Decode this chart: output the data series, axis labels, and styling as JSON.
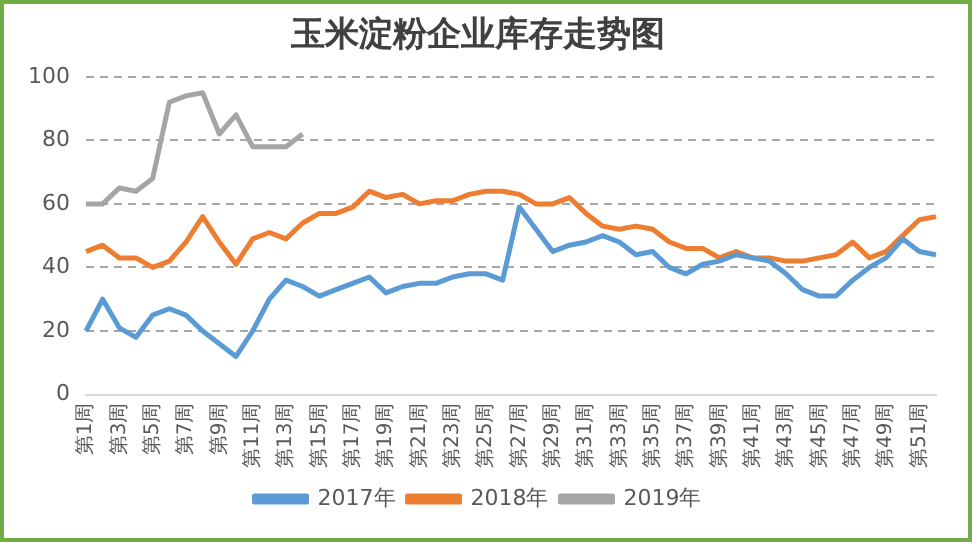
{
  "chart_data": {
    "type": "line",
    "title": "玉米淀粉企业库存走势图",
    "categories": [
      "第1周",
      null,
      "第3周",
      null,
      "第5周",
      null,
      "第7周",
      null,
      "第9周",
      null,
      "第11周",
      null,
      "第13周",
      null,
      "第15周",
      null,
      "第17周",
      null,
      "第19周",
      null,
      "第21周",
      null,
      "第23周",
      null,
      "第25周",
      null,
      "第27周",
      null,
      "第29周",
      null,
      "第31周",
      null,
      "第33周",
      null,
      "第35周",
      null,
      "第37周",
      null,
      "第39周",
      null,
      "第41周",
      null,
      "第43周",
      null,
      "第45周",
      null,
      "第47周",
      null,
      "第49周",
      null,
      "第51周",
      null
    ],
    "series": [
      {
        "name": "2017年",
        "color": "#5b9bd5",
        "values": [
          20,
          30,
          21,
          18,
          25,
          27,
          25,
          20,
          16,
          12,
          20,
          30,
          36,
          34,
          31,
          33,
          35,
          37,
          32,
          34,
          35,
          35,
          37,
          38,
          38,
          36,
          59,
          52,
          45,
          47,
          48,
          50,
          48,
          44,
          45,
          40,
          38,
          41,
          42,
          44,
          43,
          42,
          38,
          33,
          31,
          31,
          36,
          40,
          43,
          49,
          45,
          44
        ]
      },
      {
        "name": "2018年",
        "color": "#ed7d31",
        "values": [
          45,
          47,
          43,
          43,
          40,
          42,
          48,
          56,
          48,
          41,
          49,
          51,
          49,
          54,
          57,
          57,
          59,
          64,
          62,
          63,
          60,
          61,
          61,
          63,
          64,
          64,
          63,
          60,
          60,
          62,
          57,
          53,
          52,
          53,
          52,
          48,
          46,
          46,
          43,
          45,
          43,
          43,
          42,
          42,
          43,
          44,
          48,
          43,
          45,
          50,
          55,
          56
        ]
      },
      {
        "name": "2019年",
        "color": "#a5a5a5",
        "values": [
          60,
          60,
          65,
          64,
          68,
          92,
          94,
          95,
          82,
          88,
          78,
          78,
          78,
          82,
          null,
          null,
          null,
          null,
          null,
          null,
          null,
          null,
          null,
          null,
          null,
          null,
          null,
          null,
          null,
          null,
          null,
          null,
          null,
          null,
          null,
          null,
          null,
          null,
          null,
          null,
          null,
          null,
          null,
          null,
          null,
          null,
          null,
          null,
          null,
          null,
          null,
          null
        ]
      }
    ],
    "ylim": [
      0,
      100
    ],
    "yticks": [
      0,
      20,
      40,
      60,
      80,
      100
    ],
    "grid": "y",
    "legend": "bottom"
  }
}
